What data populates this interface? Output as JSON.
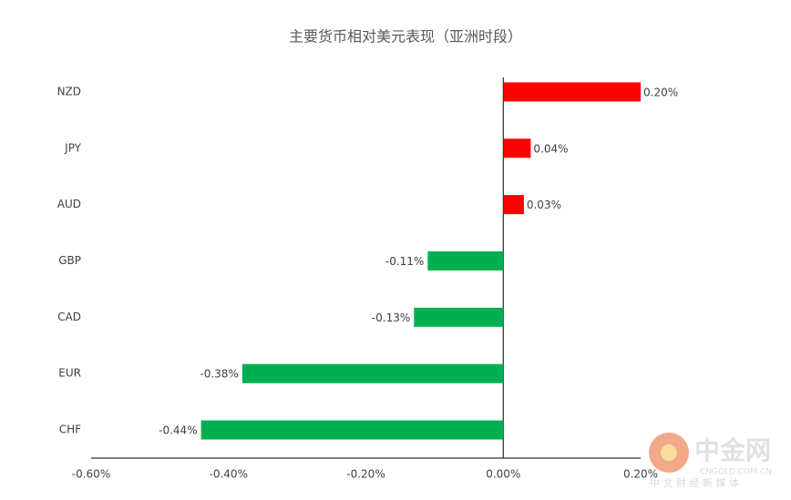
{
  "chart_data": {
    "type": "bar",
    "orientation": "horizontal",
    "title": "主要货币相对美元表现（亚洲时段）",
    "categories": [
      "NZD",
      "JPY",
      "AUD",
      "GBP",
      "CAD",
      "EUR",
      "CHF"
    ],
    "values": [
      0.2,
      0.04,
      0.03,
      -0.11,
      -0.13,
      -0.38,
      -0.44
    ],
    "value_labels": [
      "0.20%",
      "0.04%",
      "0.03%",
      "-0.11%",
      "-0.13%",
      "-0.38%",
      "-0.44%"
    ],
    "colors": [
      "#ff0000",
      "#ff0000",
      "#ff0000",
      "#00b050",
      "#00b050",
      "#00b050",
      "#00b050"
    ],
    "xlim": [
      -0.6,
      0.2
    ],
    "xticks": [
      {
        "value": -0.6,
        "label": "-0.60%"
      },
      {
        "value": -0.4,
        "label": "-0.40%"
      },
      {
        "value": -0.2,
        "label": "-0.20%"
      },
      {
        "value": 0,
        "label": "0.00%"
      },
      {
        "value": 0.2,
        "label": "0.20%"
      }
    ],
    "grid": false
  },
  "watermark": {
    "brand": "中金网",
    "domain": "CNGOLD.COM.CN",
    "slogan": "中 文 财 经 新 媒 体"
  }
}
